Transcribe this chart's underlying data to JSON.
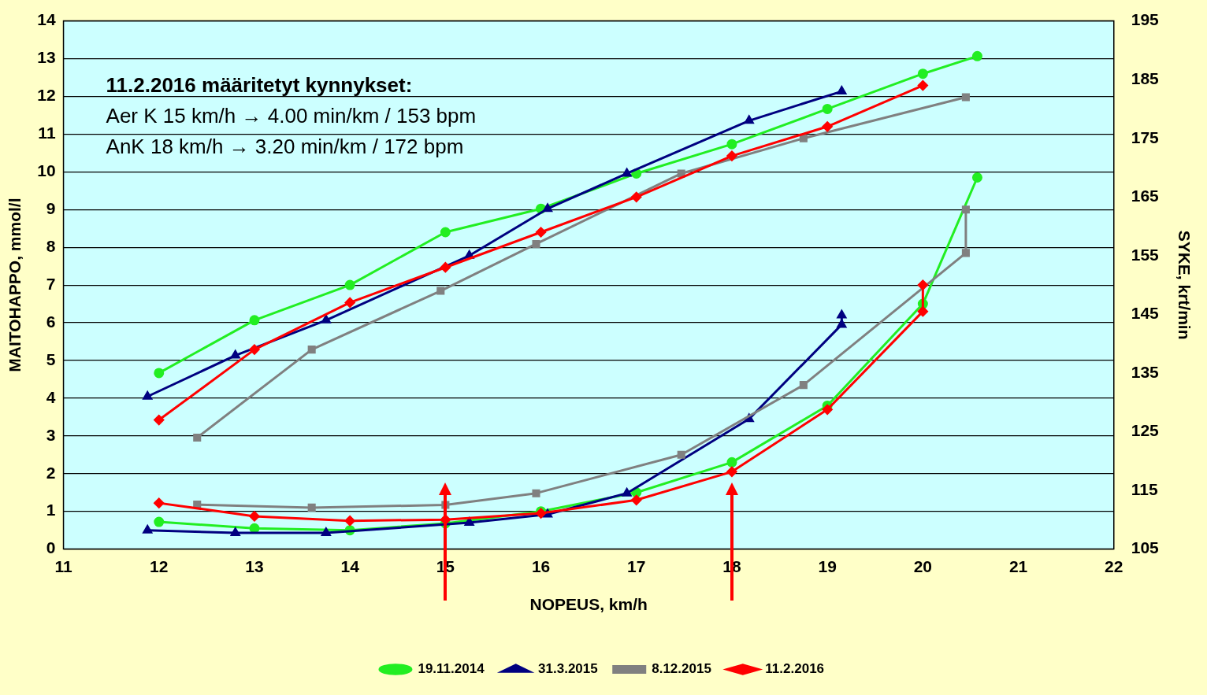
{
  "chart_data": {
    "type": "line",
    "xlabel": "NOPEUS, km/h",
    "ylabel": "MAITOHAPPO, mmol/l",
    "y2label": "SYKE, krt/min",
    "xlim": [
      11,
      22
    ],
    "xticks": [
      11,
      12,
      13,
      14,
      15,
      16,
      17,
      18,
      19,
      20,
      21,
      22
    ],
    "ylim": [
      0,
      14
    ],
    "yticks": [
      0,
      1,
      2,
      3,
      4,
      5,
      6,
      7,
      8,
      9,
      10,
      11,
      12,
      13,
      14
    ],
    "y2lim": [
      105,
      195
    ],
    "y2ticks": [
      105,
      115,
      125,
      135,
      145,
      155,
      165,
      175,
      185,
      195
    ],
    "grid": "y",
    "legend": "bottom",
    "line_style": "solid",
    "annotations": [
      "11.2.2016 määritetyt kynnykset:",
      "Aer K 15 km/h → 4.00 min/km / 153 bpm",
      "AnK 18 km/h → 3.20 min/km / 172 bpm"
    ],
    "ref_lines": [
      {
        "axis": "x",
        "value": 15,
        "color": "#ff0000"
      },
      {
        "axis": "x",
        "value": 18,
        "color": "#ff0000"
      }
    ],
    "series": [
      {
        "name": "19.11.2014",
        "color": "#22ee22",
        "marker": "circle",
        "x": [
          12,
          13,
          14,
          15,
          16,
          17,
          18,
          19,
          20,
          20.57
        ],
        "values": [
          0.72,
          0.55,
          0.5,
          0.68,
          1.0,
          1.5,
          2.3,
          3.8,
          6.5,
          9.85
        ]
      },
      {
        "name": "31.3.2015",
        "color": "#000080",
        "marker": "triangle",
        "x": [
          11.88,
          12.8,
          13.75,
          15.25,
          16.07,
          16.9,
          18.18,
          19.15,
          19.15
        ],
        "values": [
          0.5,
          0.43,
          0.43,
          0.7,
          0.92,
          1.48,
          3.45,
          5.95,
          6.2
        ]
      },
      {
        "name": "8.12.2015",
        "color": "#808080",
        "marker": "square",
        "x": [
          12.4,
          13.6,
          15,
          15.95,
          17.47,
          18.75,
          20.45,
          20.45
        ],
        "values": [
          1.18,
          1.1,
          1.17,
          1.48,
          2.5,
          4.35,
          7.85,
          9.0
        ]
      },
      {
        "name": "11.2.2016",
        "color": "#ff0000",
        "marker": "diamond",
        "x": [
          12,
          13,
          14,
          15,
          16,
          17,
          18,
          19,
          20,
          20
        ],
        "values": [
          1.22,
          0.87,
          0.75,
          0.78,
          0.95,
          1.3,
          2.05,
          3.7,
          6.3,
          7.0
        ]
      },
      {
        "color": "#22ee22",
        "marker": "circle",
        "axis": "y2",
        "x": [
          12,
          13,
          14,
          15,
          16,
          17,
          18,
          19,
          20,
          20.57
        ],
        "values": [
          135,
          144,
          150,
          159,
          163,
          169,
          174,
          180,
          186,
          189
        ]
      },
      {
        "color": "#000080",
        "marker": "triangle",
        "axis": "y2",
        "x": [
          11.88,
          12.8,
          13.75,
          15.25,
          16.07,
          16.9,
          18.18,
          19.15
        ],
        "values": [
          131,
          138,
          144,
          155,
          163,
          169,
          178,
          183
        ]
      },
      {
        "color": "#808080",
        "marker": "square",
        "axis": "y2",
        "x": [
          12.4,
          13.6,
          14.95,
          15.95,
          17.47,
          18.75,
          20.45
        ],
        "values": [
          124,
          139,
          149,
          157,
          169,
          175,
          182
        ]
      },
      {
        "color": "#ff0000",
        "marker": "diamond",
        "axis": "y2",
        "x": [
          12,
          13,
          14,
          15,
          16,
          17,
          18,
          19,
          20
        ],
        "values": [
          127,
          139,
          147,
          153,
          159,
          165,
          172,
          177,
          184
        ]
      }
    ]
  }
}
